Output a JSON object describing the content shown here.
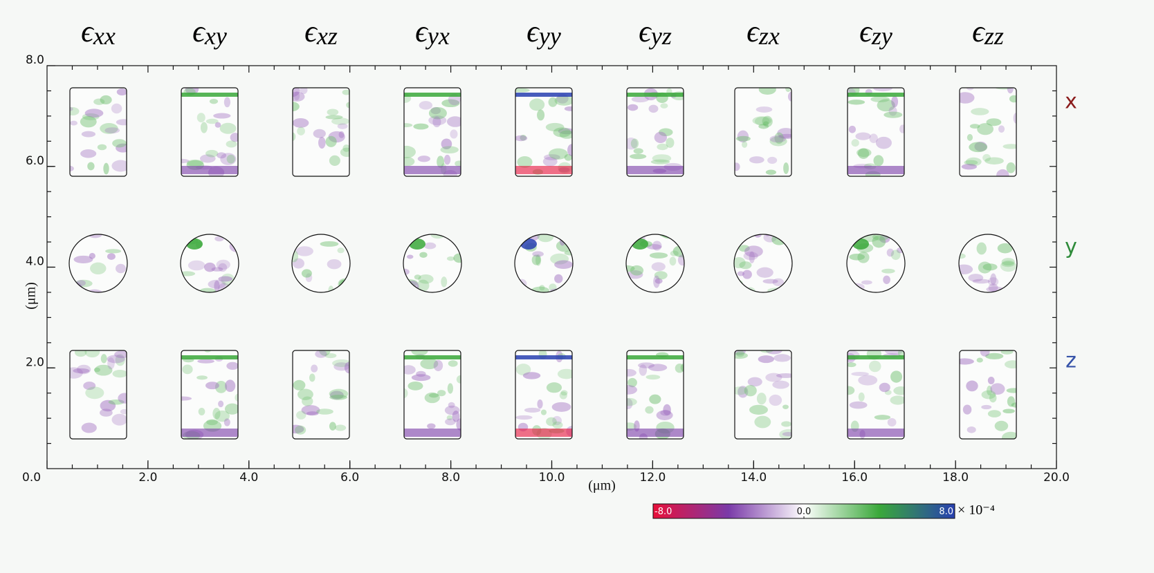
{
  "chart_data": {
    "type": "image-grid",
    "columns": [
      {
        "symbol": "ϵ",
        "subscript": "xx"
      },
      {
        "symbol": "ϵ",
        "subscript": "xy"
      },
      {
        "symbol": "ϵ",
        "subscript": "xz"
      },
      {
        "symbol": "ϵ",
        "subscript": "yx"
      },
      {
        "symbol": "ϵ",
        "subscript": "yy"
      },
      {
        "symbol": "ϵ",
        "subscript": "yz"
      },
      {
        "symbol": "ϵ",
        "subscript": "zx"
      },
      {
        "symbol": "ϵ",
        "subscript": "zy"
      },
      {
        "symbol": "ϵ",
        "subscript": "zz"
      }
    ],
    "rows": [
      {
        "label": "x",
        "color": "#8b1c1c"
      },
      {
        "label": "y",
        "color": "#2e8b3a"
      },
      {
        "label": "z",
        "color": "#3552a8"
      }
    ],
    "xlabel": "(μm)",
    "ylabel": "(μm)",
    "xlim": [
      0,
      20
    ],
    "ylim": [
      0,
      8
    ],
    "xticks": [
      {
        "value": 0,
        "label": "0.0"
      },
      {
        "value": 2,
        "label": "2.0"
      },
      {
        "value": 4,
        "label": "4.0"
      },
      {
        "value": 6,
        "label": "6.0"
      },
      {
        "value": 8,
        "label": "8.0"
      },
      {
        "value": 10,
        "label": "10.0"
      },
      {
        "value": 12,
        "label": "12.0"
      },
      {
        "value": 14,
        "label": "14.0"
      },
      {
        "value": 16,
        "label": "16.0"
      },
      {
        "value": 18,
        "label": "18.0"
      },
      {
        "value": 20,
        "label": "20.0"
      }
    ],
    "yticks": [
      {
        "value": 2,
        "label": "2.0"
      },
      {
        "value": 4,
        "label": "4.0"
      },
      {
        "value": 6,
        "label": "6.0"
      },
      {
        "value": 8,
        "label": "8.0"
      }
    ],
    "colorbar": {
      "clim": [
        -8,
        8
      ],
      "multiplier": "× 10⁻⁴",
      "ticks": [
        {
          "value": -8,
          "label": "-8.0"
        },
        {
          "value": 0,
          "label": "0.0"
        },
        {
          "value": 8,
          "label": "8.0"
        }
      ],
      "colors": [
        "#e8103a",
        "#7a3aa8",
        "#ffffff",
        "#3aa83a",
        "#2840b0"
      ]
    }
  }
}
